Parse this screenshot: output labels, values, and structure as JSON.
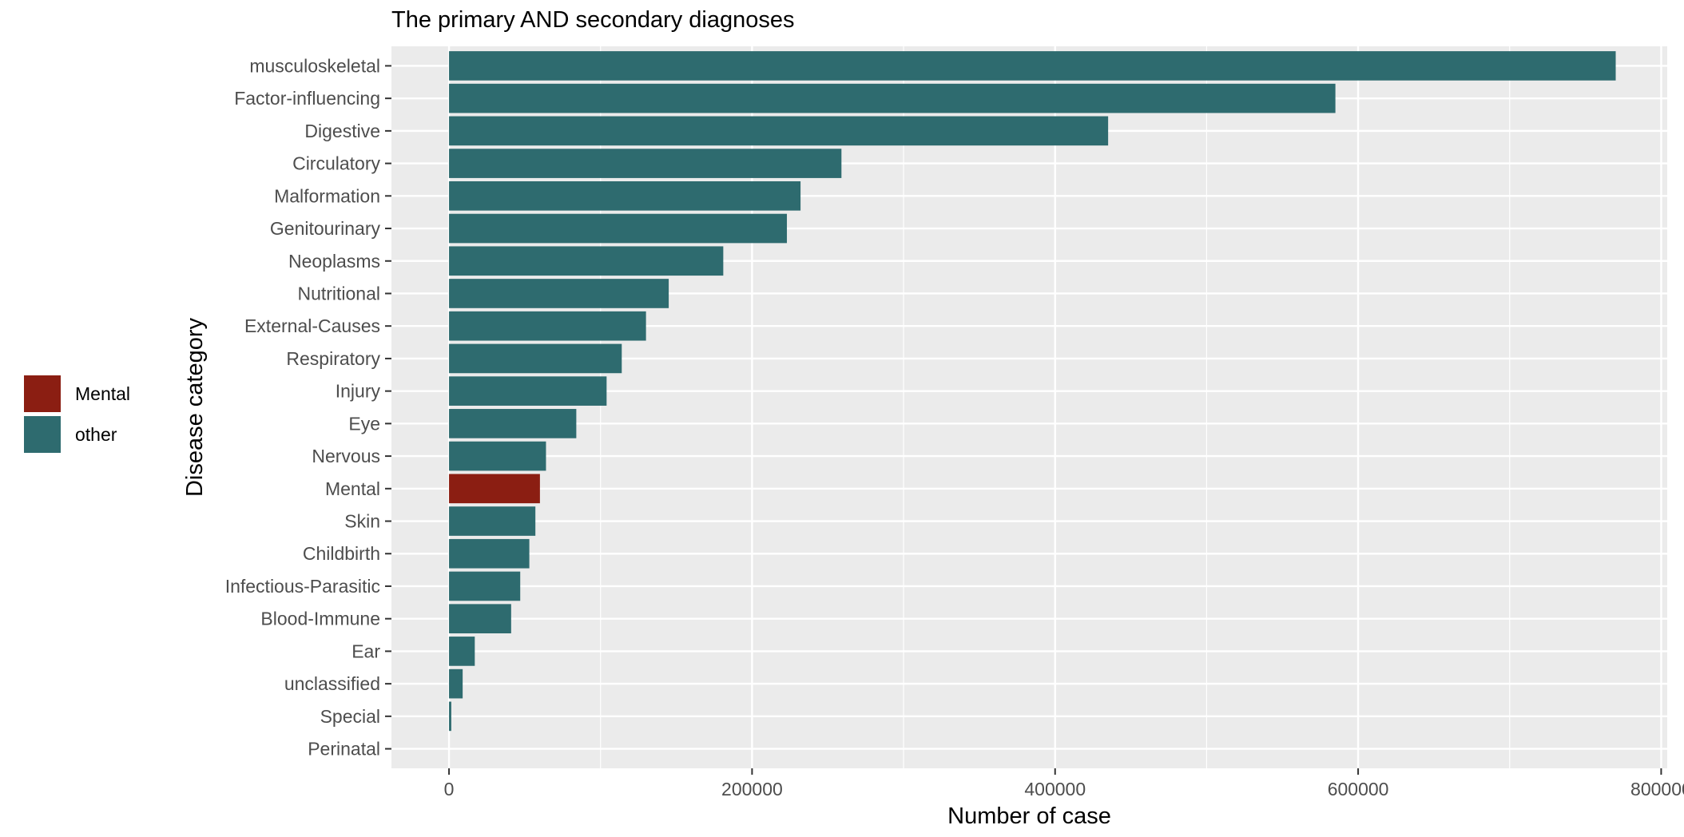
{
  "chart_data": {
    "type": "bar",
    "orientation": "horizontal",
    "title": "The primary AND secondary diagnoses",
    "xlabel": "Number of case",
    "ylabel": "Disease category",
    "xlim": [
      -38000,
      804000
    ],
    "x_ticks": [
      0,
      200000,
      400000,
      600000,
      800000
    ],
    "x_tick_labels": [
      "0",
      "200000",
      "400000",
      "600000",
      "800000"
    ],
    "grid": true,
    "legend_position": "left",
    "categories": [
      "musculoskeletal",
      "Factor-influencing",
      "Digestive",
      "Circulatory",
      "Malformation",
      "Genitourinary",
      "Neoplasms",
      "Nutritional",
      "External-Causes",
      "Respiratory",
      "Injury",
      "Eye",
      "Nervous",
      "Mental",
      "Skin",
      "Childbirth",
      "Infectious-Parasitic",
      "Blood-Immune",
      "Ear",
      "unclassified",
      "Special",
      "Perinatal"
    ],
    "values": [
      770000,
      585000,
      435000,
      259000,
      232000,
      223000,
      181000,
      145000,
      130000,
      114000,
      104000,
      84000,
      64000,
      60000,
      57000,
      53000,
      47000,
      41000,
      17000,
      9000,
      1500,
      0
    ],
    "groups": [
      "other",
      "other",
      "other",
      "other",
      "other",
      "other",
      "other",
      "other",
      "other",
      "other",
      "other",
      "other",
      "other",
      "Mental",
      "other",
      "other",
      "other",
      "other",
      "other",
      "other",
      "other",
      "other"
    ],
    "legend": [
      {
        "label": "Mental",
        "color": "#8b1e12"
      },
      {
        "label": "other",
        "color": "#2e6b6f"
      }
    ],
    "panel_background": "#ebebeb",
    "grid_color": "#ffffff"
  }
}
